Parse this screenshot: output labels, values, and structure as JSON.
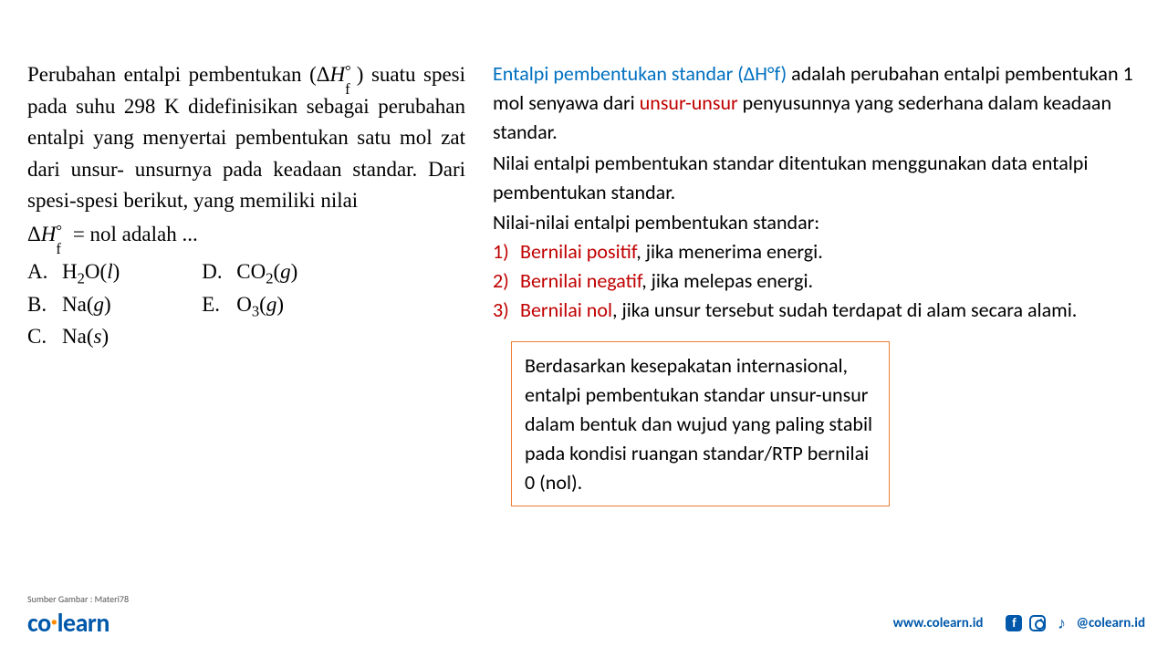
{
  "question": {
    "line1": "Perubahan entalpi pembentukan ",
    "delta_h": {
      "pre": "(Δ",
      "H": "H",
      "sub": "f",
      "sup": "°",
      "post": ")"
    },
    "line1b": "",
    "line2": "suatu spesi pada suhu 298 K didefinisikan",
    "line3": "sebagai perubahan entalpi yang menyertai",
    "line4": "pembentukan satu mol zat dari unsur-",
    "line5": "unsurnya pada keadaan standar. Dari",
    "line6": "spesi-spesi berikut, yang memiliki nilai",
    "formula": {
      "pre": "Δ",
      "H": "H",
      "sub": "f",
      "sup": "°",
      "eq": " = nol adalah ..."
    }
  },
  "options": {
    "A": {
      "label": "A.",
      "text_pre": "H",
      "sub1": "2",
      "mid": "O(",
      "ital": "l",
      "post": ")"
    },
    "B": {
      "label": "B.",
      "text": "Na(",
      "ital": "g",
      "post": ")"
    },
    "C": {
      "label": "C.",
      "text": "Na(",
      "ital": "s",
      "post": ")"
    },
    "D": {
      "label": "D.",
      "text_pre": "CO",
      "sub1": "2",
      "mid": "(",
      "ital": "g",
      "post": ")"
    },
    "E": {
      "label": "E.",
      "text_pre": "O",
      "sub1": "3",
      "mid": "(",
      "ital": "g",
      "post": ")"
    }
  },
  "explanation": {
    "p1_b1": "Entalpi pembentukan standar (ΔH°f)",
    "p1_a": " adalah perubahan entalpi pembentukan 1 mol senyawa dari ",
    "p1_r1": "unsur-unsur",
    "p1_b": " penyusunnya yang sederhana dalam keadaan standar.",
    "p2": "Nilai entalpi pembentukan standar ditentukan menggunakan data entalpi pembentukan standar.",
    "p3": "Nilai-nilai entalpi pembentukan standar:",
    "items": [
      {
        "n": "1)",
        "r": "Bernilai positif",
        "t": ", jika menerima energi."
      },
      {
        "n": "2)",
        "r": "Bernilai negatif",
        "t": ", jika melepas energi."
      },
      {
        "n": "3)",
        "r": "Bernilai nol",
        "t": ", jika unsur tersebut sudah terdapat di alam secara alami."
      }
    ],
    "box": "Berdasarkan kesepakatan internasional, entalpi pembentukan standar unsur-unsur dalam bentuk dan wujud yang paling stabil pada kondisi ruangan standar/RTP bernilai 0 (nol)."
  },
  "footer": {
    "source": "Sumber Gambar : Materi78",
    "logo_co": "co",
    "logo_dot": "·",
    "logo_learn": "learn",
    "website": "www.colearn.id",
    "handle": "@colearn.id",
    "fb": "f"
  },
  "colors": {
    "blue": "#0070c0",
    "red": "#c00000",
    "box_border": "#ed7d31",
    "brand_blue": "#0058aa",
    "brand_orange": "#ff8a00",
    "text": "#000000",
    "bg": "#ffffff"
  }
}
